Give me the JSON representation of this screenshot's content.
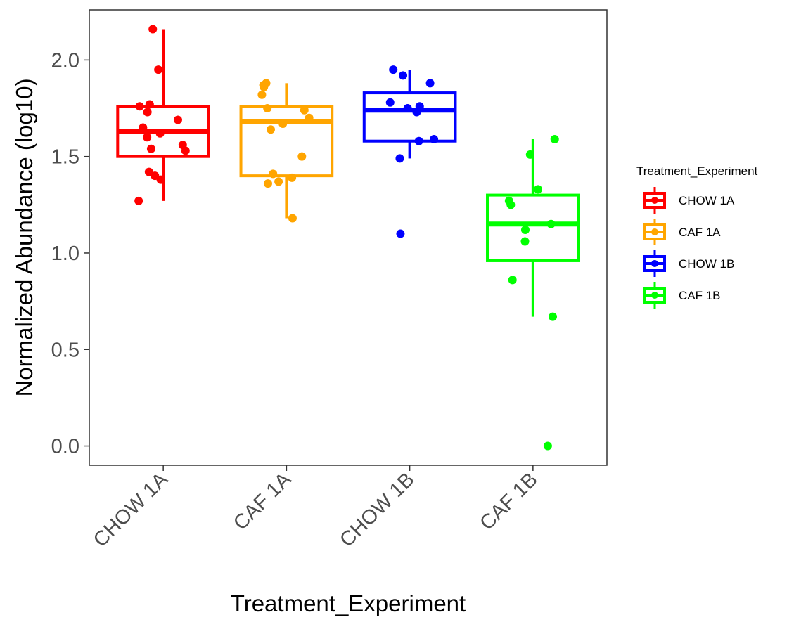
{
  "chart_data": {
    "type": "boxplot",
    "xlabel": "Treatment_Experiment",
    "ylabel": "Normalized Abundance (log10)",
    "ylim": [
      -0.1,
      2.26
    ],
    "yticks": [
      0.0,
      0.5,
      1.0,
      1.5,
      2.0
    ],
    "ytick_labels": [
      "0.0",
      "0.5",
      "1.0",
      "1.5",
      "2.0"
    ],
    "grid": false,
    "legend": {
      "title": "Treatment_Experiment",
      "position": "right"
    },
    "categories": [
      "CHOW 1A",
      "CAF 1A",
      "CHOW 1B",
      "CAF 1B"
    ],
    "series": [
      {
        "name": "CHOW 1A",
        "color": "#ff0000",
        "box": {
          "whisker_low": 1.27,
          "q1": 1.5,
          "median": 1.63,
          "q3": 1.76,
          "whisker_high": 2.16
        },
        "points": [
          2.16,
          1.95,
          1.77,
          1.76,
          1.73,
          1.69,
          1.65,
          1.62,
          1.6,
          1.56,
          1.54,
          1.53,
          1.42,
          1.4,
          1.38,
          1.27
        ]
      },
      {
        "name": "CAF 1A",
        "color": "#ffa500",
        "box": {
          "whisker_low": 1.18,
          "q1": 1.4,
          "median": 1.68,
          "q3": 1.76,
          "whisker_high": 1.88
        },
        "points": [
          1.88,
          1.87,
          1.86,
          1.82,
          1.75,
          1.74,
          1.7,
          1.67,
          1.64,
          1.5,
          1.41,
          1.39,
          1.37,
          1.36,
          1.18
        ]
      },
      {
        "name": "CHOW 1B",
        "color": "#0000ff",
        "box": {
          "whisker_low": 1.49,
          "q1": 1.58,
          "median": 1.74,
          "q3": 1.83,
          "whisker_high": 1.95
        },
        "points": [
          1.95,
          1.92,
          1.88,
          1.78,
          1.76,
          1.75,
          1.73,
          1.59,
          1.58,
          1.49,
          1.1
        ]
      },
      {
        "name": "CAF 1B",
        "color": "#00ff00",
        "box": {
          "whisker_low": 0.67,
          "q1": 0.96,
          "median": 1.15,
          "q3": 1.3,
          "whisker_high": 1.59
        },
        "points": [
          1.59,
          1.51,
          1.33,
          1.27,
          1.25,
          1.15,
          1.12,
          1.06,
          0.86,
          0.67,
          0.0
        ]
      }
    ]
  }
}
